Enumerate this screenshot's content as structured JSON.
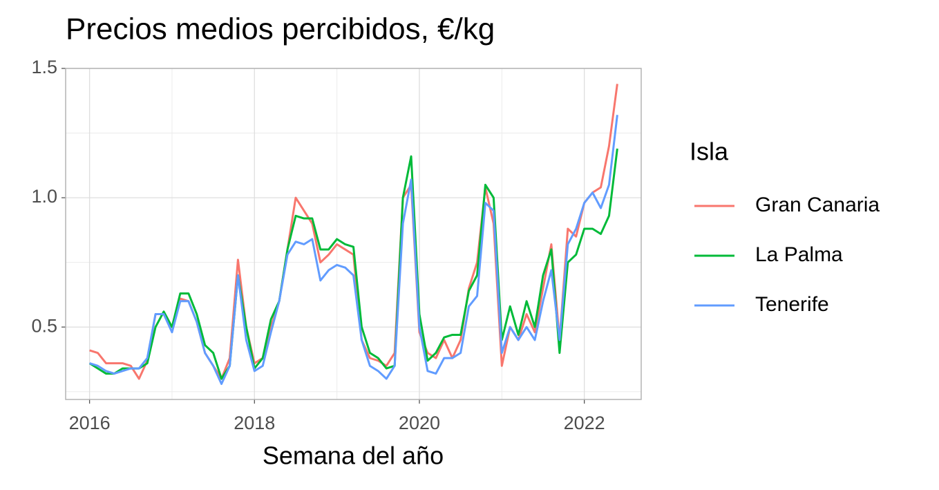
{
  "chart_data": {
    "type": "line",
    "title": "Precios medios percibidos, €/kg",
    "x_label": "Semana del año",
    "legend_title": "Isla",
    "legend_position": "right",
    "grid": true,
    "x": [
      2016.0,
      2016.1,
      2016.2,
      2016.3,
      2016.4,
      2016.5,
      2016.6,
      2016.7,
      2016.8,
      2016.9,
      2017.0,
      2017.1,
      2017.2,
      2017.3,
      2017.4,
      2017.5,
      2017.6,
      2017.7,
      2017.8,
      2017.9,
      2018.0,
      2018.1,
      2018.2,
      2018.3,
      2018.4,
      2018.5,
      2018.6,
      2018.7,
      2018.8,
      2018.9,
      2019.0,
      2019.1,
      2019.2,
      2019.3,
      2019.4,
      2019.5,
      2019.6,
      2019.7,
      2019.8,
      2019.9,
      2020.0,
      2020.1,
      2020.2,
      2020.3,
      2020.4,
      2020.5,
      2020.6,
      2020.7,
      2020.8,
      2020.9,
      2021.0,
      2021.1,
      2021.2,
      2021.3,
      2021.4,
      2021.5,
      2021.6,
      2021.7,
      2021.8,
      2021.9,
      2022.0,
      2022.1,
      2022.2,
      2022.3,
      2022.4
    ],
    "series": [
      {
        "name": "Gran Canaria",
        "color": "#F8766D",
        "values": [
          0.41,
          0.4,
          0.36,
          0.36,
          0.36,
          0.35,
          0.3,
          0.37,
          0.55,
          0.55,
          0.5,
          0.61,
          0.6,
          0.52,
          0.4,
          0.35,
          0.3,
          0.38,
          0.76,
          0.5,
          0.36,
          0.38,
          0.5,
          0.6,
          0.8,
          1.0,
          0.95,
          0.9,
          0.75,
          0.78,
          0.82,
          0.8,
          0.78,
          0.45,
          0.38,
          0.37,
          0.35,
          0.4,
          1.0,
          1.05,
          0.48,
          0.4,
          0.38,
          0.45,
          0.38,
          0.45,
          0.65,
          0.75,
          1.04,
          0.9,
          0.35,
          0.5,
          0.45,
          0.55,
          0.48,
          0.65,
          0.82,
          0.45,
          0.88,
          0.85,
          0.98,
          1.02,
          1.04,
          1.2,
          1.44
        ]
      },
      {
        "name": "La Palma",
        "color": "#00BA38",
        "values": [
          0.36,
          0.34,
          0.32,
          0.32,
          0.34,
          0.34,
          0.34,
          0.36,
          0.5,
          0.56,
          0.5,
          0.63,
          0.63,
          0.55,
          0.43,
          0.4,
          0.3,
          0.35,
          0.7,
          0.5,
          0.34,
          0.38,
          0.53,
          0.6,
          0.8,
          0.93,
          0.92,
          0.92,
          0.8,
          0.8,
          0.84,
          0.82,
          0.81,
          0.5,
          0.4,
          0.38,
          0.34,
          0.35,
          1.0,
          1.16,
          0.55,
          0.37,
          0.4,
          0.46,
          0.47,
          0.47,
          0.64,
          0.7,
          1.05,
          1.0,
          0.45,
          0.58,
          0.47,
          0.6,
          0.5,
          0.7,
          0.8,
          0.4,
          0.75,
          0.78,
          0.88,
          0.88,
          0.86,
          0.93,
          1.19
        ]
      },
      {
        "name": "Tenerife",
        "color": "#619CFF",
        "values": [
          0.36,
          0.35,
          0.33,
          0.32,
          0.33,
          0.34,
          0.34,
          0.38,
          0.55,
          0.55,
          0.48,
          0.6,
          0.6,
          0.52,
          0.4,
          0.35,
          0.28,
          0.35,
          0.7,
          0.45,
          0.33,
          0.35,
          0.48,
          0.6,
          0.78,
          0.83,
          0.82,
          0.84,
          0.68,
          0.72,
          0.74,
          0.73,
          0.7,
          0.45,
          0.35,
          0.33,
          0.3,
          0.35,
          0.9,
          1.07,
          0.5,
          0.33,
          0.32,
          0.38,
          0.38,
          0.4,
          0.58,
          0.62,
          0.98,
          0.95,
          0.4,
          0.5,
          0.45,
          0.5,
          0.45,
          0.6,
          0.72,
          0.45,
          0.82,
          0.88,
          0.98,
          1.02,
          0.96,
          1.05,
          1.32
        ]
      }
    ],
    "xlim": [
      2015.71,
      2022.69
    ],
    "xticks": [
      2016,
      2018,
      2020,
      2022
    ],
    "ylim": [
      0.22,
      1.5
    ],
    "yticks": [
      0.5,
      {
        "value": 1,
        "label": "1.0"
      },
      1.5
    ]
  }
}
